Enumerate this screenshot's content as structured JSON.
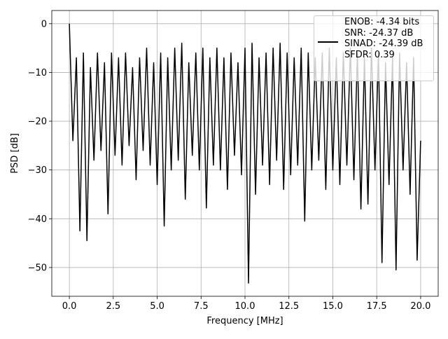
{
  "chart_data": {
    "type": "line",
    "x_label": "Frequency [MHz]",
    "y_label": "PSD [dB]",
    "x": [
      0,
      0.2,
      0.4,
      0.6,
      0.8,
      1.0,
      1.2,
      1.4,
      1.6,
      1.8,
      2.0,
      2.2,
      2.4,
      2.6,
      2.8,
      3.0,
      3.2,
      3.4,
      3.6,
      3.8,
      4.0,
      4.2,
      4.4,
      4.6,
      4.8,
      5.0,
      5.2,
      5.4,
      5.6,
      5.8,
      6.0,
      6.2,
      6.4,
      6.6,
      6.8,
      7.0,
      7.2,
      7.4,
      7.6,
      7.8,
      8.0,
      8.2,
      8.4,
      8.6,
      8.8,
      9.0,
      9.2,
      9.4,
      9.6,
      9.8,
      10.0,
      10.2,
      10.4,
      10.6,
      10.8,
      11.0,
      11.2,
      11.4,
      11.6,
      11.8,
      12.0,
      12.2,
      12.4,
      12.6,
      12.8,
      13.0,
      13.2,
      13.4,
      13.6,
      13.8,
      14.0,
      14.2,
      14.4,
      14.6,
      14.8,
      15.0,
      15.2,
      15.4,
      15.6,
      15.8,
      16.0,
      16.2,
      16.4,
      16.6,
      16.8,
      17.0,
      17.2,
      17.4,
      17.6,
      17.8,
      18.0,
      18.2,
      18.4,
      18.6,
      18.8,
      19.0,
      19.2,
      19.4,
      19.6,
      19.8,
      20.0
    ],
    "series": [
      {
        "name": "ENOB: -4.34 bits\nSNR: -24.37 dB\nSINAD: -24.39 dB\nSFDR: 0.39",
        "color": "#000000",
        "values": [
          0,
          -24,
          -7,
          -42.5,
          -6,
          -44.5,
          -9,
          -28,
          -6,
          -26,
          -8,
          -39,
          -6,
          -27,
          -7,
          -29,
          -6,
          -25,
          -9,
          -32,
          -7,
          -26,
          -5,
          -29,
          -8,
          -33,
          -6,
          -41.5,
          -7,
          -30,
          -5,
          -28,
          -4,
          -36,
          -8,
          -27,
          -6,
          -30,
          -5,
          -37.8,
          -7,
          -29,
          -5,
          -30,
          -7,
          -34,
          -6,
          -27,
          -8,
          -31,
          -5,
          -53.2,
          -4,
          -35,
          -7,
          -29,
          -6,
          -33,
          -5,
          -28,
          -4,
          -34,
          -6,
          -31,
          -7,
          -29,
          -5,
          -40.5,
          -6,
          -30,
          -7,
          -28,
          -6,
          -34,
          -5,
          -30,
          -7,
          -33,
          -6,
          -29,
          -5,
          -32,
          -6,
          -38,
          -7,
          -37,
          -5,
          -30,
          -6,
          -49,
          -8,
          -33,
          -7,
          -50.5,
          -6,
          -30,
          -8,
          -35,
          -7,
          -48.5,
          -24
        ]
      }
    ],
    "xlim": [
      -1,
      21
    ],
    "ylim": [
      -55.9,
      2.7
    ],
    "xticks": [
      {
        "value": 0,
        "label": "0.0"
      },
      {
        "value": 2.5,
        "label": "2.5"
      },
      {
        "value": 5,
        "label": "5.0"
      },
      {
        "value": 7.5,
        "label": "7.5"
      },
      {
        "value": 10,
        "label": "10.0"
      },
      {
        "value": 12.5,
        "label": "12.5"
      },
      {
        "value": 15,
        "label": "15.0"
      },
      {
        "value": 17.5,
        "label": "17.5"
      },
      {
        "value": 20,
        "label": "20.0"
      }
    ],
    "yticks": [
      0,
      {
        "value": -10,
        "label": "−10"
      },
      {
        "value": -20,
        "label": "−20"
      },
      {
        "value": -30,
        "label": "−30"
      },
      {
        "value": -40,
        "label": "−40"
      },
      {
        "value": -50,
        "label": "−50"
      }
    ],
    "grid": true,
    "legend": "upper right"
  }
}
